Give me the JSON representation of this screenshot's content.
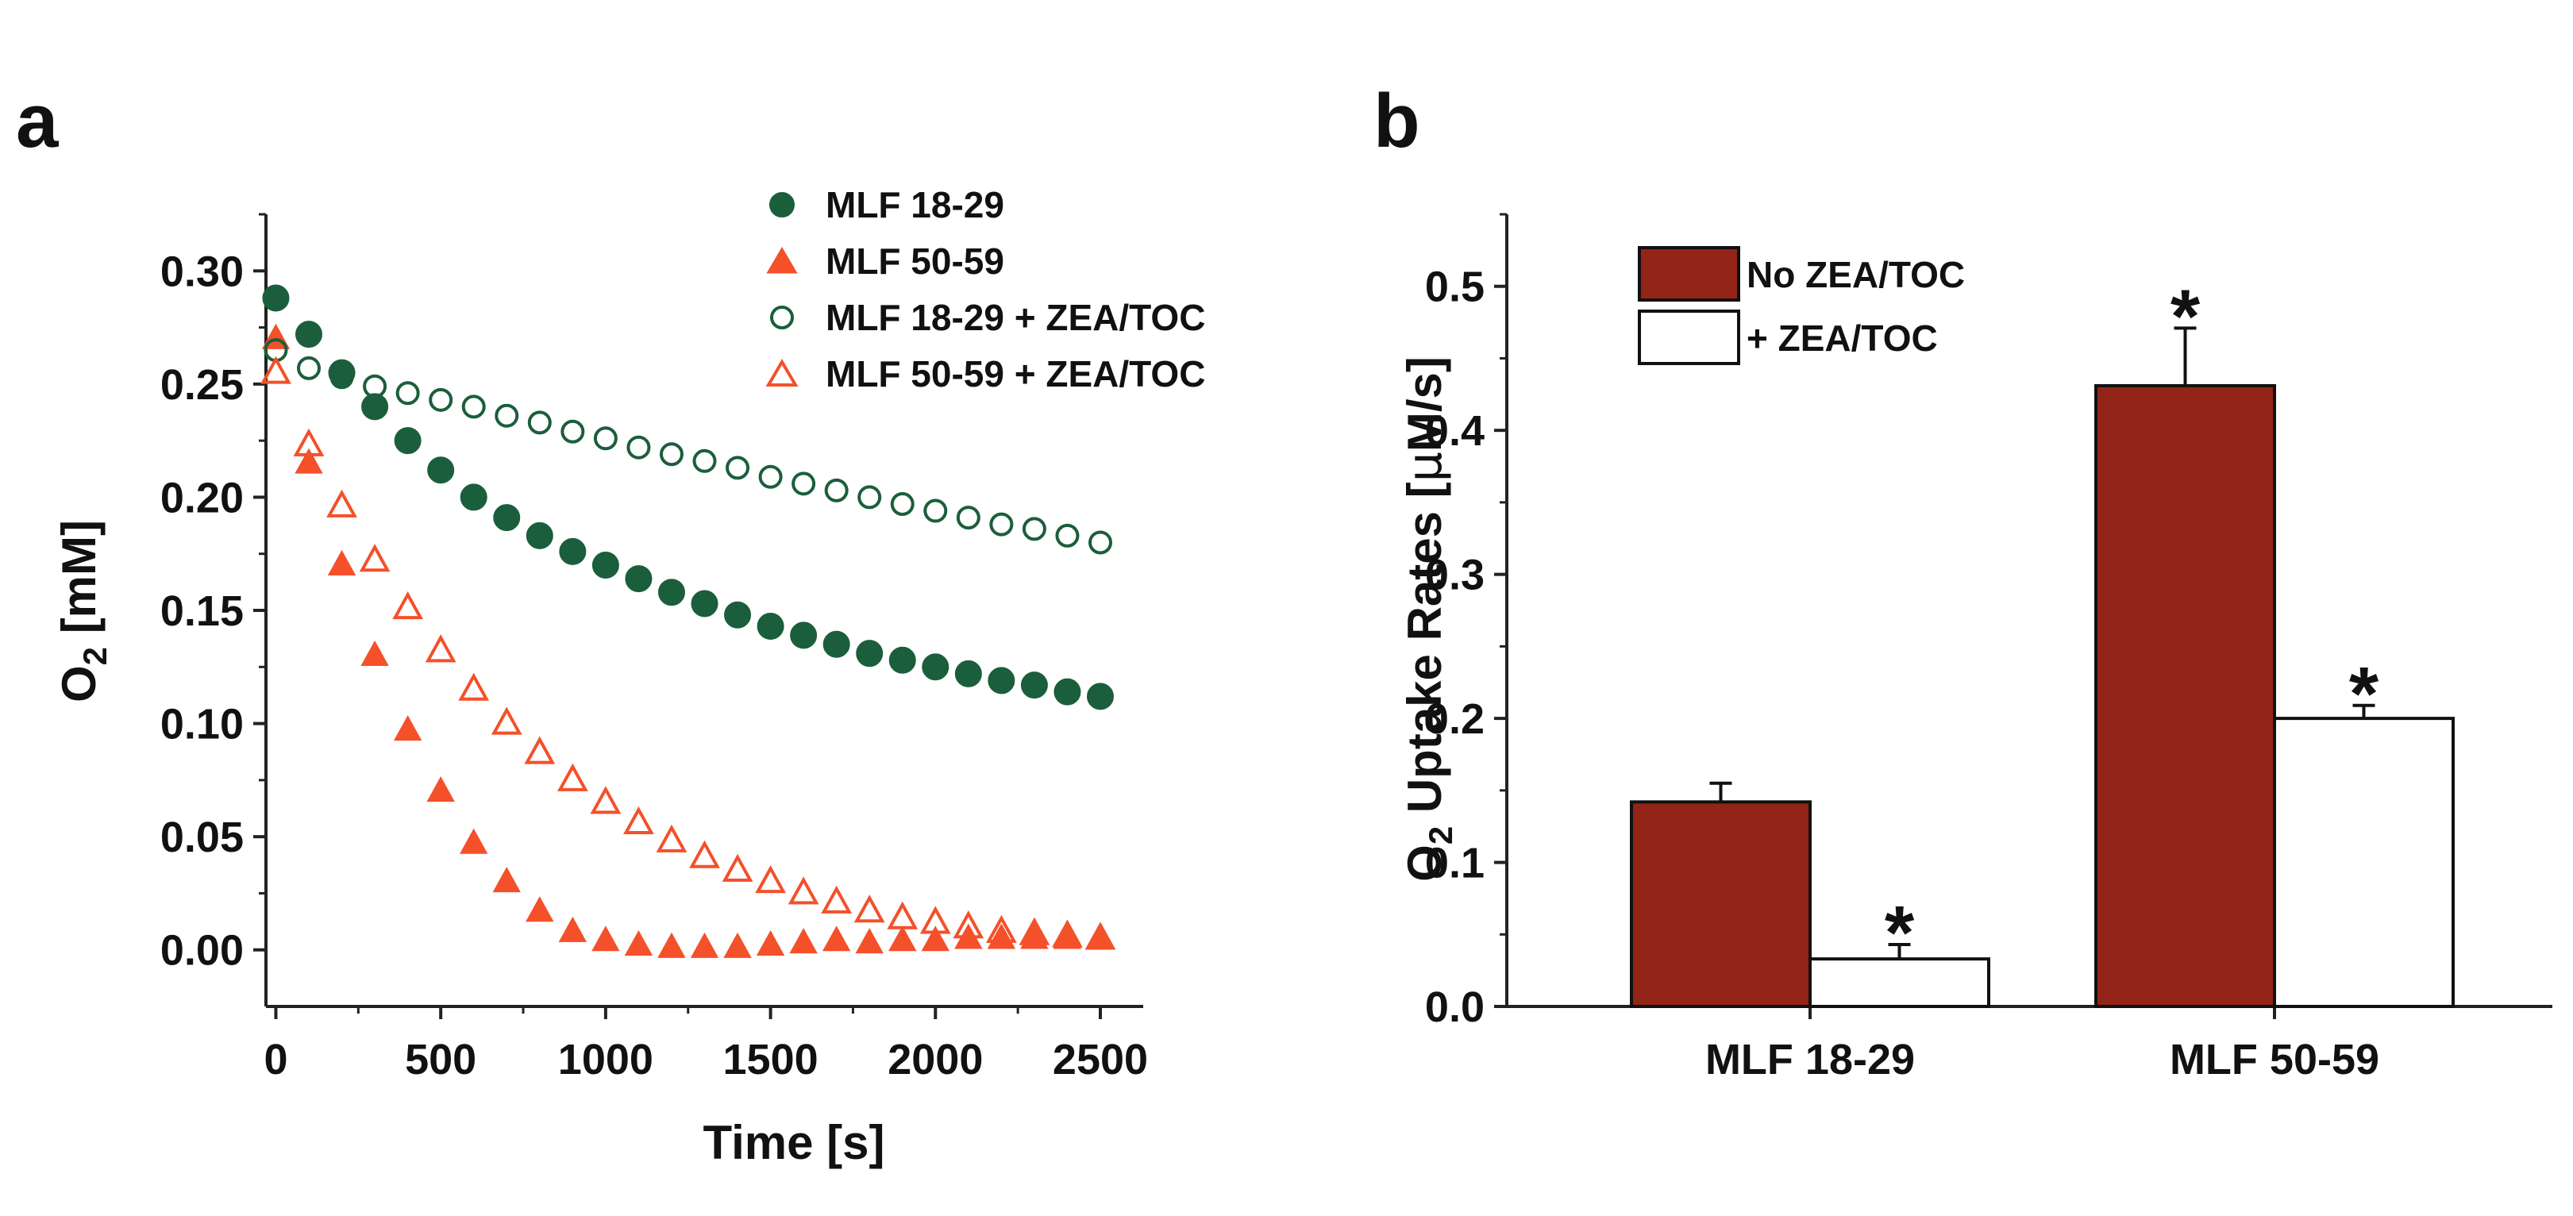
{
  "chart_data": [
    {
      "panel": "a",
      "type": "scatter",
      "title": "",
      "xlabel": "Time [s]",
      "ylabel_main": "O",
      "ylabel_sub": "2",
      "ylabel_unit": " [mM]",
      "xlim": [
        -30,
        2630
      ],
      "ylim": [
        -0.025,
        0.325
      ],
      "xticks": [
        0,
        500,
        1000,
        1500,
        2000,
        2500
      ],
      "xtick_labels": [
        "0",
        "500",
        "1000",
        "1500",
        "2000",
        "2500"
      ],
      "yticks": [
        0.0,
        0.05,
        0.1,
        0.15,
        0.2,
        0.25,
        0.3
      ],
      "ytick_labels": [
        "0.00",
        "0.05",
        "0.10",
        "0.15",
        "0.20",
        "0.25",
        "0.30"
      ],
      "legend_position": "top-right",
      "series": [
        {
          "name": "MLF 18-29",
          "marker": "circle-filled",
          "color": "#1b5e3b",
          "x": [
            0,
            100,
            200,
            300,
            400,
            500,
            600,
            700,
            800,
            900,
            1000,
            1100,
            1200,
            1300,
            1400,
            1500,
            1600,
            1700,
            1800,
            1900,
            2000,
            2100,
            2200,
            2300,
            2400,
            2500
          ],
          "y": [
            0.288,
            0.272,
            0.255,
            0.24,
            0.225,
            0.212,
            0.2,
            0.191,
            0.183,
            0.176,
            0.17,
            0.164,
            0.158,
            0.153,
            0.148,
            0.143,
            0.139,
            0.135,
            0.131,
            0.128,
            0.125,
            0.122,
            0.119,
            0.117,
            0.114,
            0.112
          ]
        },
        {
          "name": "MLF 50-59",
          "marker": "triangle-filled",
          "color": "#f4502a",
          "x": [
            0,
            100,
            200,
            300,
            400,
            500,
            600,
            700,
            800,
            900,
            1000,
            1100,
            1200,
            1300,
            1400,
            1500,
            1600,
            1700,
            1800,
            1900,
            2000,
            2100,
            2200,
            2300,
            2400,
            2500
          ],
          "y": [
            0.27,
            0.215,
            0.17,
            0.13,
            0.097,
            0.07,
            0.047,
            0.03,
            0.017,
            0.008,
            0.004,
            0.002,
            0.001,
            0.001,
            0.001,
            0.002,
            0.003,
            0.004,
            0.003,
            0.004,
            0.004,
            0.005,
            0.005,
            0.005,
            0.005,
            0.005
          ]
        },
        {
          "name": "MLF 18-29 + ZEA/TOC",
          "marker": "circle-open",
          "color": "#1b5e3b",
          "x": [
            0,
            100,
            200,
            300,
            400,
            500,
            600,
            700,
            800,
            900,
            1000,
            1100,
            1200,
            1300,
            1400,
            1500,
            1600,
            1700,
            1800,
            1900,
            2000,
            2100,
            2200,
            2300,
            2400,
            2500
          ],
          "y": [
            0.265,
            0.257,
            0.253,
            0.249,
            0.246,
            0.243,
            0.24,
            0.236,
            0.233,
            0.229,
            0.226,
            0.222,
            0.219,
            0.216,
            0.213,
            0.209,
            0.206,
            0.203,
            0.2,
            0.197,
            0.194,
            0.191,
            0.188,
            0.186,
            0.183,
            0.18
          ]
        },
        {
          "name": "MLF 50-59 + ZEA/TOC",
          "marker": "triangle-open",
          "color": "#f4502a",
          "x": [
            0,
            100,
            200,
            300,
            400,
            500,
            600,
            700,
            800,
            900,
            1000,
            1100,
            1200,
            1300,
            1400,
            1500,
            1600,
            1700,
            1800,
            1900,
            2000,
            2100,
            2200,
            2300,
            2400,
            2500
          ],
          "y": [
            0.255,
            0.223,
            0.196,
            0.172,
            0.151,
            0.132,
            0.115,
            0.1,
            0.087,
            0.075,
            0.065,
            0.056,
            0.048,
            0.041,
            0.035,
            0.03,
            0.025,
            0.021,
            0.017,
            0.014,
            0.012,
            0.01,
            0.008,
            0.007,
            0.006,
            0.005
          ]
        }
      ]
    },
    {
      "panel": "b",
      "type": "bar",
      "title": "",
      "xlabel": "",
      "ylabel_main": "O",
      "ylabel_sub": "2",
      "ylabel_unit": " Uptake Rates [",
      "ylabel_mu": "μ",
      "ylabel_end": "M/s]",
      "ylim": [
        0,
        0.55
      ],
      "yticks": [
        0.0,
        0.1,
        0.2,
        0.3,
        0.4,
        0.5
      ],
      "ytick_labels": [
        "0.0",
        "0.1",
        "0.2",
        "0.3",
        "0.4",
        "0.5"
      ],
      "categories": [
        "MLF 18-29",
        "MLF 50-59"
      ],
      "legend_position": "top-left",
      "series": [
        {
          "name": "No ZEA/TOC",
          "color": "#922418",
          "values": [
            0.142,
            0.431
          ],
          "errors": [
            0.013,
            0.04
          ],
          "significance": [
            "",
            "*"
          ]
        },
        {
          "name": "+ ZEA/TOC",
          "color": "#ffffff",
          "values": [
            0.033,
            0.2
          ],
          "errors": [
            0.01,
            0.009
          ],
          "significance": [
            "*",
            "*"
          ]
        }
      ]
    }
  ]
}
